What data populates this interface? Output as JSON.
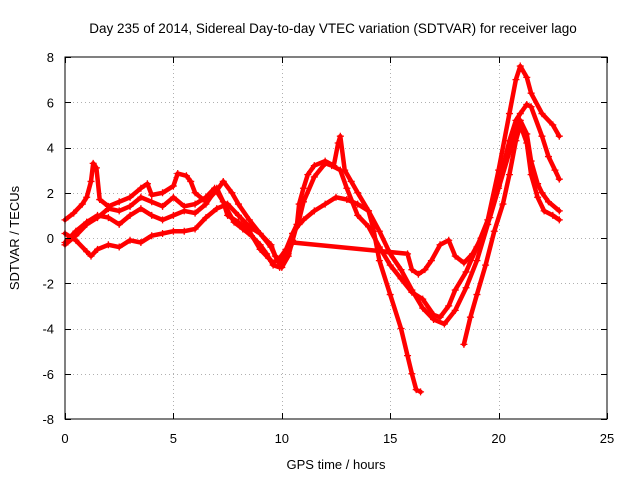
{
  "chart_data": {
    "type": "scatter",
    "title": "Day 235 of 2014, Sidereal Day-to-day VTEC variation (SDTVAR) for receiver lago",
    "xlabel": "GPS time / hours",
    "ylabel": "SDTVAR / TECUs",
    "xlim": [
      0,
      25
    ],
    "ylim": [
      -8,
      8
    ],
    "xticks": [
      0,
      5,
      10,
      15,
      20,
      25
    ],
    "yticks": [
      -8,
      -6,
      -4,
      -2,
      0,
      2,
      4,
      6,
      8
    ],
    "grid": true,
    "series": [
      {
        "name": "series-1",
        "color": "#ff0000",
        "marker": "plus",
        "points": [
          [
            0.0,
            0.8
          ],
          [
            0.4,
            1.1
          ],
          [
            0.8,
            1.5
          ],
          [
            1.0,
            1.8
          ],
          [
            1.2,
            2.5
          ],
          [
            1.3,
            3.3
          ],
          [
            1.45,
            3.1
          ],
          [
            1.6,
            1.7
          ],
          [
            2.0,
            1.4
          ],
          [
            2.5,
            1.6
          ],
          [
            3.0,
            1.8
          ],
          [
            3.5,
            2.2
          ],
          [
            3.8,
            2.4
          ],
          [
            4.0,
            1.9
          ],
          [
            4.5,
            2.0
          ],
          [
            5.0,
            2.3
          ],
          [
            5.2,
            2.85
          ],
          [
            5.6,
            2.75
          ],
          [
            5.8,
            2.5
          ],
          [
            6.0,
            2.0
          ],
          [
            6.5,
            1.6
          ],
          [
            7.0,
            2.1
          ],
          [
            7.3,
            2.5
          ],
          [
            7.7,
            2.0
          ],
          [
            8.0,
            1.5
          ],
          [
            8.5,
            0.8
          ],
          [
            9.0,
            0.2
          ],
          [
            9.5,
            -0.4
          ],
          [
            9.8,
            -1.0
          ],
          [
            10.0,
            -1.3
          ],
          [
            10.3,
            -0.8
          ],
          [
            10.5,
            -0.1
          ],
          [
            10.7,
            0.6
          ],
          [
            10.8,
            1.5
          ],
          [
            11.0,
            2.2
          ],
          [
            11.2,
            2.8
          ],
          [
            11.5,
            3.2
          ],
          [
            12.0,
            3.4
          ],
          [
            12.4,
            3.2
          ],
          [
            12.6,
            4.2
          ],
          [
            12.7,
            4.5
          ],
          [
            12.9,
            3.0
          ],
          [
            13.2,
            2.5
          ],
          [
            13.5,
            2.0
          ],
          [
            14.0,
            1.2
          ],
          [
            14.5,
            0.3
          ],
          [
            15.0,
            -0.7
          ],
          [
            15.5,
            -1.4
          ],
          [
            16.0,
            -2.3
          ],
          [
            16.5,
            -3.1
          ],
          [
            17.0,
            -3.6
          ],
          [
            17.5,
            -3.8
          ],
          [
            18.0,
            -3.2
          ],
          [
            18.5,
            -2.2
          ],
          [
            19.0,
            -1.0
          ],
          [
            19.5,
            0.6
          ],
          [
            20.0,
            2.3
          ],
          [
            20.5,
            4.3
          ],
          [
            20.8,
            5.2
          ],
          [
            21.0,
            5.5
          ],
          [
            21.3,
            5.9
          ],
          [
            21.5,
            5.8
          ],
          [
            22.0,
            4.5
          ],
          [
            22.3,
            3.6
          ],
          [
            22.6,
            3.0
          ],
          [
            22.8,
            2.6
          ]
        ]
      },
      {
        "name": "series-2",
        "color": "#ff0000",
        "marker": "plus",
        "points": [
          [
            0.0,
            -0.3
          ],
          [
            0.5,
            0.1
          ],
          [
            1.0,
            0.6
          ],
          [
            1.5,
            0.9
          ],
          [
            2.0,
            1.3
          ],
          [
            2.5,
            1.2
          ],
          [
            3.0,
            1.4
          ],
          [
            3.5,
            1.8
          ],
          [
            4.0,
            1.6
          ],
          [
            4.5,
            1.4
          ],
          [
            5.0,
            1.8
          ],
          [
            5.5,
            1.4
          ],
          [
            6.0,
            1.5
          ],
          [
            6.5,
            1.8
          ],
          [
            6.9,
            2.2
          ],
          [
            7.3,
            1.6
          ],
          [
            7.5,
            1.0
          ],
          [
            8.0,
            0.7
          ],
          [
            8.5,
            0.3
          ],
          [
            9.0,
            -0.5
          ],
          [
            9.4,
            -0.9
          ],
          [
            9.6,
            -1.1
          ],
          [
            9.9,
            -0.9
          ],
          [
            10.2,
            -0.5
          ],
          [
            10.5,
            0.2
          ],
          [
            10.8,
            0.8
          ],
          [
            11.0,
            1.6
          ],
          [
            11.5,
            2.7
          ],
          [
            12.0,
            3.3
          ],
          [
            12.3,
            3.2
          ],
          [
            12.7,
            3.0
          ],
          [
            13.0,
            2.2
          ],
          [
            13.5,
            1.0
          ],
          [
            14.0,
            0.5
          ],
          [
            14.5,
            -0.4
          ],
          [
            15.0,
            -1.2
          ],
          [
            15.5,
            -1.8
          ],
          [
            16.0,
            -2.4
          ],
          [
            16.5,
            -2.7
          ],
          [
            17.0,
            -3.4
          ],
          [
            17.3,
            -3.5
          ],
          [
            17.7,
            -3.0
          ],
          [
            18.0,
            -2.3
          ],
          [
            18.5,
            -1.5
          ],
          [
            19.0,
            -0.4
          ],
          [
            19.5,
            0.8
          ],
          [
            20.0,
            3.0
          ],
          [
            20.5,
            5.5
          ],
          [
            20.8,
            7.0
          ],
          [
            21.0,
            7.6
          ],
          [
            21.3,
            7.1
          ],
          [
            21.5,
            6.4
          ],
          [
            22.0,
            5.5
          ],
          [
            22.5,
            5.0
          ],
          [
            22.8,
            4.5
          ]
        ]
      },
      {
        "name": "series-3",
        "color": "#ff0000",
        "marker": "plus",
        "points": [
          [
            0.0,
            0.2
          ],
          [
            0.5,
            -0.1
          ],
          [
            1.0,
            -0.6
          ],
          [
            1.2,
            -0.8
          ],
          [
            1.5,
            -0.5
          ],
          [
            2.0,
            -0.3
          ],
          [
            2.5,
            -0.4
          ],
          [
            3.0,
            -0.1
          ],
          [
            3.5,
            -0.2
          ],
          [
            4.0,
            0.1
          ],
          [
            4.5,
            0.2
          ],
          [
            5.0,
            0.3
          ],
          [
            5.5,
            0.3
          ],
          [
            6.0,
            0.4
          ],
          [
            6.5,
            0.9
          ],
          [
            7.0,
            1.3
          ],
          [
            7.5,
            1.5
          ],
          [
            8.0,
            1.0
          ],
          [
            8.5,
            0.5
          ],
          [
            9.0,
            0.2
          ],
          [
            9.5,
            -0.3
          ],
          [
            9.7,
            -0.8
          ],
          [
            10.0,
            -1.0
          ],
          [
            10.3,
            -0.7
          ],
          [
            10.5,
            0.2
          ],
          [
            10.8,
            0.6
          ],
          [
            11.0,
            0.8
          ],
          [
            11.5,
            1.2
          ],
          [
            12.0,
            1.5
          ],
          [
            12.5,
            1.8
          ],
          [
            13.0,
            1.7
          ],
          [
            13.5,
            1.5
          ],
          [
            14.0,
            1.2
          ],
          [
            14.2,
            0.5
          ],
          [
            14.5,
            -1.0
          ],
          [
            15.0,
            -2.5
          ],
          [
            15.5,
            -4.0
          ],
          [
            15.8,
            -5.2
          ],
          [
            16.0,
            -6.0
          ],
          [
            16.2,
            -6.7
          ],
          [
            16.4,
            -6.8
          ]
        ]
      },
      {
        "name": "series-4",
        "color": "#ff0000",
        "marker": "plus",
        "points": [
          [
            0.0,
            -0.2
          ],
          [
            0.5,
            0.3
          ],
          [
            1.0,
            0.7
          ],
          [
            1.5,
            1.0
          ],
          [
            2.0,
            0.9
          ],
          [
            2.5,
            0.6
          ],
          [
            3.0,
            1.0
          ],
          [
            3.5,
            1.3
          ],
          [
            4.0,
            1.0
          ],
          [
            4.5,
            0.8
          ],
          [
            5.0,
            1.0
          ],
          [
            5.5,
            1.2
          ],
          [
            6.0,
            1.1
          ],
          [
            6.5,
            1.5
          ],
          [
            7.0,
            2.2
          ],
          [
            7.4,
            1.4
          ],
          [
            7.8,
            0.7
          ],
          [
            8.2,
            0.4
          ],
          [
            8.6,
            0.1
          ],
          [
            9.0,
            -0.3
          ],
          [
            9.3,
            -0.7
          ],
          [
            9.6,
            -1.2
          ],
          [
            9.9,
            -1.3
          ],
          [
            10.2,
            -0.8
          ],
          [
            10.5,
            -0.2
          ],
          [
            15.8,
            -0.7
          ],
          [
            16.0,
            -1.4
          ],
          [
            16.3,
            -1.6
          ],
          [
            16.6,
            -1.4
          ],
          [
            16.9,
            -1.0
          ],
          [
            17.3,
            -0.3
          ],
          [
            17.7,
            -0.1
          ],
          [
            18.0,
            -0.8
          ],
          [
            18.4,
            -1.1
          ],
          [
            18.8,
            -0.7
          ],
          [
            19.2,
            0.0
          ],
          [
            19.6,
            0.9
          ],
          [
            20.0,
            2.2
          ],
          [
            20.5,
            3.8
          ],
          [
            20.8,
            4.6
          ],
          [
            21.0,
            5.2
          ],
          [
            21.3,
            4.6
          ],
          [
            21.5,
            3.4
          ],
          [
            21.8,
            2.4
          ],
          [
            22.0,
            2.0
          ],
          [
            22.3,
            1.6
          ],
          [
            22.8,
            1.2
          ]
        ]
      },
      {
        "name": "series-5",
        "color": "#ff0000",
        "marker": "plus",
        "points": [
          [
            18.4,
            -4.7
          ],
          [
            18.7,
            -3.5
          ],
          [
            19.0,
            -2.5
          ],
          [
            19.4,
            -1.2
          ],
          [
            19.8,
            0.3
          ],
          [
            20.2,
            1.5
          ],
          [
            20.5,
            2.8
          ],
          [
            20.8,
            4.3
          ],
          [
            21.0,
            5.0
          ],
          [
            21.3,
            4.2
          ],
          [
            21.5,
            2.8
          ],
          [
            21.8,
            1.8
          ],
          [
            22.1,
            1.2
          ],
          [
            22.5,
            1.0
          ],
          [
            22.8,
            0.8
          ]
        ]
      }
    ]
  }
}
